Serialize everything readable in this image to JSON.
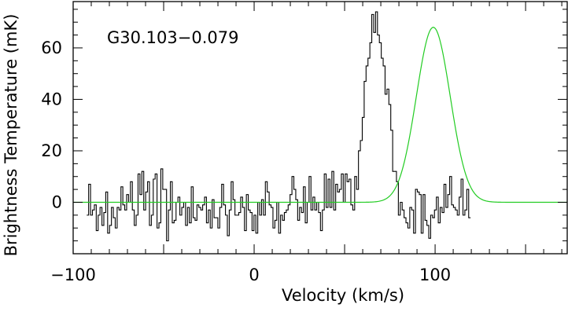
{
  "chart_data": {
    "type": "line",
    "annotation": "G30.103−0.079",
    "xlabel": "Velocity (km/s)",
    "ylabel": "Brightness Temperature (mK)",
    "xlim": [
      -100,
      173
    ],
    "ylim": [
      -20,
      78
    ],
    "x_ticks": [
      -100,
      0,
      100
    ],
    "x_tick_labels": [
      "−100",
      "0",
      "100"
    ],
    "y_ticks": [
      0,
      20,
      40,
      60
    ],
    "y_tick_labels": [
      "0",
      "20",
      "40",
      "60"
    ],
    "grid": false,
    "series": [
      {
        "style": "histogram",
        "color": "#000000",
        "x_start": -92.5,
        "bin_width": 1.05,
        "values": [
          -5,
          7,
          -5,
          -3,
          -1,
          -11,
          -5,
          -2,
          -9,
          -4,
          4,
          -12,
          -9,
          -2,
          -6,
          -10,
          -2,
          -3,
          6,
          -1,
          -3,
          3,
          0,
          8,
          -3,
          -9,
          -5,
          11,
          3,
          12,
          -3,
          4,
          8,
          -9,
          -5,
          9,
          11,
          -10,
          -8,
          13,
          5,
          5,
          -15,
          -3,
          8,
          -8,
          -7,
          0,
          2,
          -5,
          -2,
          0,
          -9,
          -2,
          -8,
          6,
          -6,
          -7,
          -1,
          -2,
          -3,
          -1,
          2,
          -8,
          -3,
          -10,
          1,
          -6,
          -6,
          -10,
          -2,
          7,
          -1,
          -5,
          -13,
          -3,
          8,
          1,
          -5,
          -5,
          -4,
          2,
          -2,
          -11,
          3,
          -3,
          -4,
          -11,
          -5,
          -12,
          0,
          -5,
          1,
          -5,
          8,
          4,
          -1,
          -2,
          -10,
          -7,
          0,
          -12,
          -5,
          -7,
          -4,
          -3,
          -1,
          3,
          10,
          5,
          1,
          -7,
          -2,
          -4,
          6,
          -8,
          0,
          10,
          -3,
          2,
          -3,
          0,
          -4,
          -11,
          -3,
          11,
          -2,
          9,
          -2,
          12,
          -3,
          7,
          4,
          5,
          11,
          0,
          11,
          8,
          9,
          -1,
          -3,
          10,
          5,
          20,
          24,
          33,
          47,
          53,
          56,
          62,
          73,
          66,
          74,
          65,
          62,
          56,
          53,
          42,
          44,
          38,
          28,
          12,
          12,
          8,
          -5,
          0,
          -3,
          -6,
          -8,
          -10,
          -2,
          -3,
          -12,
          5,
          4,
          3,
          -12,
          3,
          -7,
          -9,
          -14,
          -5,
          -6,
          -3,
          2,
          -8,
          -2,
          -4,
          7,
          -2,
          3,
          10,
          -1,
          -2,
          -3,
          -5,
          2,
          9,
          -5,
          -3,
          5,
          -6
        ]
      },
      {
        "style": "gaussian_fit",
        "color": "#22cc22",
        "amplitude": 68,
        "center": 99,
        "fwhm": 22,
        "baseline": 0
      }
    ]
  }
}
